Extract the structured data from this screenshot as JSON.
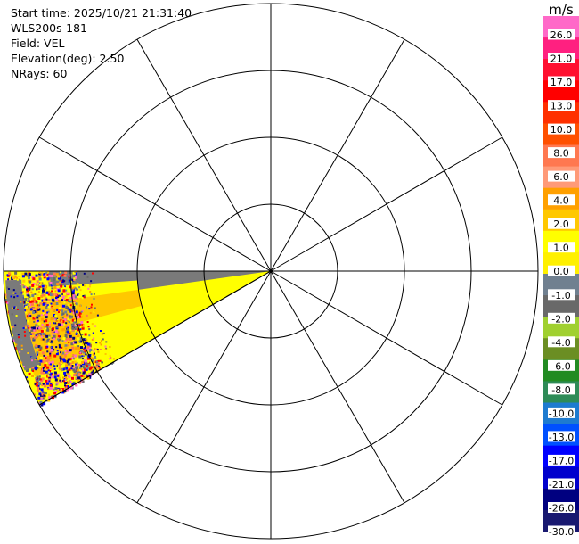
{
  "header": {
    "start_time": "Start time: 2025/10/21 21:31:40",
    "instrument": "WLS200s-181",
    "field": "Field: VEL",
    "elevation": "Elevation(deg): 2.50",
    "nrays": "NRays: 60"
  },
  "chart_data": {
    "type": "heatmap",
    "projection": "polar-ppi",
    "range_rings": 4,
    "radial_spokes_deg": [
      0,
      30,
      60,
      90,
      120,
      150,
      180,
      210,
      240,
      270,
      300,
      330
    ],
    "sector": {
      "azimuth_from_deg": 240,
      "azimuth_to_deg": 270,
      "dominant_values_ms": [
        2.0,
        4.0,
        0.0
      ],
      "near_range_fill": "gray",
      "far_range_fill": "yellow-orange-noisy"
    },
    "colorbar": {
      "unit": "m/s",
      "ticks": [
        "26.0",
        "21.0",
        "17.0",
        "13.0",
        "10.0",
        "8.0",
        "6.0",
        "4.0",
        "2.0",
        "1.0",
        "0.0",
        "-1.0",
        "-2.0",
        "-4.0",
        "-6.0",
        "-8.0",
        "-10.0",
        "-13.0",
        "-17.0",
        "-21.0",
        "-26.0",
        "-30.0"
      ],
      "colors": [
        "#ff69c8",
        "#ff2080",
        "#ff1030",
        "#ff0000",
        "#ff3000",
        "#ff5000",
        "#ff7850",
        "#ff9a78",
        "#ffa000",
        "#ffc800",
        "#ffff00",
        "#fff000",
        "#708090",
        "#696969",
        "#a0d030",
        "#6b8e23",
        "#228b22",
        "#2e8b57",
        "#1e7bd0",
        "#0050ff",
        "#0000ff",
        "#0000cd",
        "#000080",
        "#191970"
      ]
    }
  }
}
